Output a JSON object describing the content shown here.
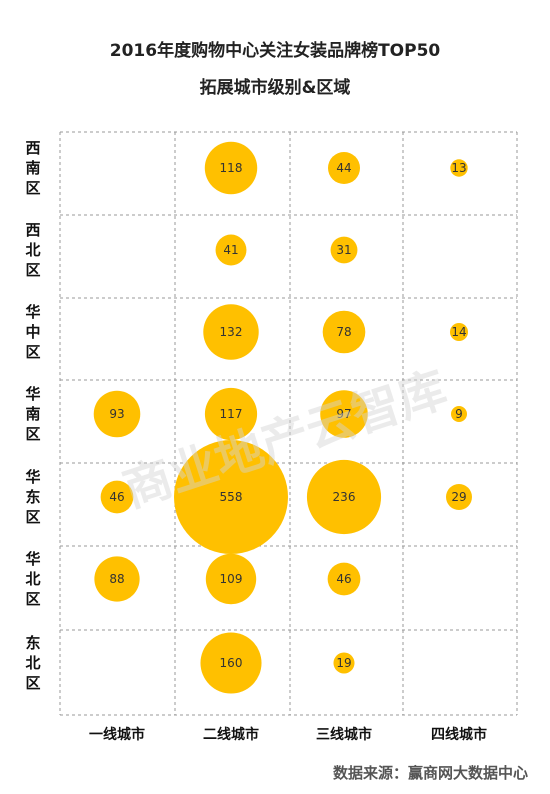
{
  "title": "2016年度购物中心关注女装品牌榜TOP50",
  "subtitle": "拓展城市级别&区域",
  "watermark": "商业地产云智库",
  "source": "数据来源：赢商网大数据中心",
  "colors": {
    "bubble": "#FFC000",
    "grid": "#999999"
  },
  "chart_data": {
    "type": "bubble",
    "rows": [
      "西南区",
      "西北区",
      "华中区",
      "华南区",
      "华东区",
      "华北区",
      "东北区"
    ],
    "columns": [
      "一线城市",
      "二线城市",
      "三线城市",
      "四线城市"
    ],
    "values": [
      [
        null,
        118,
        44,
        13
      ],
      [
        null,
        41,
        31,
        null
      ],
      [
        null,
        132,
        78,
        14
      ],
      [
        93,
        117,
        97,
        9
      ],
      [
        46,
        558,
        236,
        29
      ],
      [
        88,
        109,
        46,
        null
      ],
      [
        null,
        160,
        19,
        null
      ]
    ],
    "grid": "dashed"
  }
}
